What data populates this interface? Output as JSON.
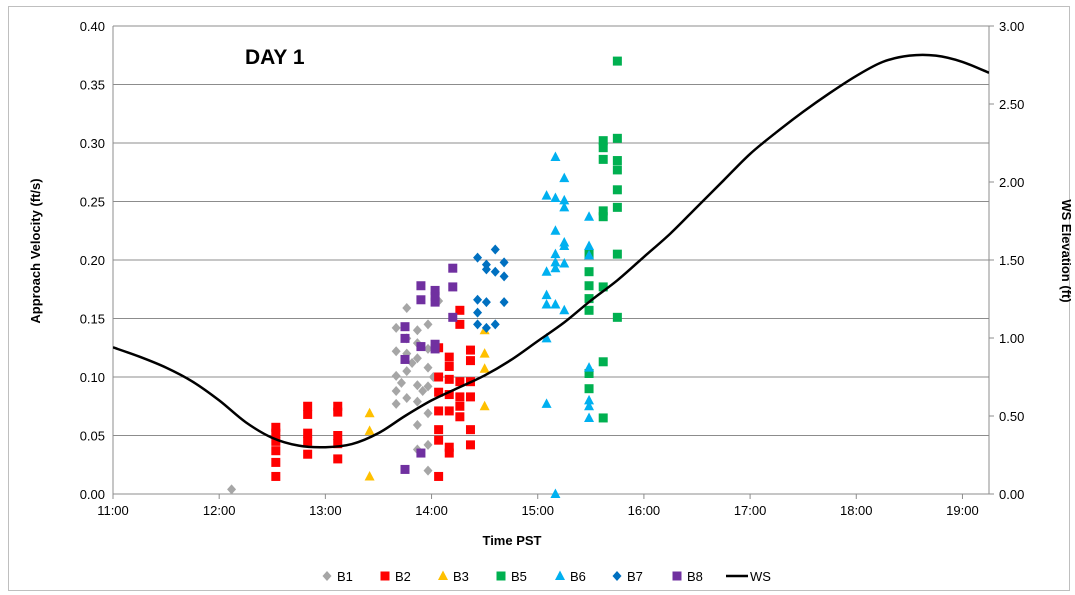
{
  "chart_data": {
    "type": "scatter",
    "title": "",
    "annotation": "DAY 1",
    "xlabel": "Time PST",
    "ylabel": "Approach Velocity (ft/s)",
    "y2label": "WS Elevation (ft)",
    "xlim": [
      "11:00",
      "19:15"
    ],
    "ylim": [
      0,
      0.4
    ],
    "y2lim": [
      0,
      3.0
    ],
    "x_ticks": [
      "11:00",
      "12:00",
      "13:00",
      "14:00",
      "15:00",
      "16:00",
      "17:00",
      "18:00",
      "19:00"
    ],
    "y_ticks": [
      "0.00",
      "0.05",
      "0.10",
      "0.15",
      "0.20",
      "0.25",
      "0.30",
      "0.35",
      "0.40"
    ],
    "y2_ticks": [
      "0.00",
      "0.50",
      "1.00",
      "1.50",
      "2.00",
      "2.50",
      "3.00"
    ],
    "grid": "horizontal",
    "legend_position": "bottom",
    "legend": [
      "B1",
      "B2",
      "B3",
      "B5",
      "B6",
      "B7",
      "B8",
      "WS"
    ],
    "series": [
      {
        "name": "B1",
        "marker": "diamond",
        "color": "#a6a6a6",
        "axis": "left",
        "points": [
          [
            "12:07",
            0.004
          ],
          [
            "13:40",
            0.142
          ],
          [
            "13:40",
            0.122
          ],
          [
            "13:40",
            0.101
          ],
          [
            "13:40",
            0.088
          ],
          [
            "13:40",
            0.077
          ],
          [
            "13:43",
            0.095
          ],
          [
            "13:46",
            0.159
          ],
          [
            "13:46",
            0.133
          ],
          [
            "13:46",
            0.12
          ],
          [
            "13:46",
            0.105
          ],
          [
            "13:46",
            0.082
          ],
          [
            "13:49",
            0.112
          ],
          [
            "13:52",
            0.14
          ],
          [
            "13:52",
            0.129
          ],
          [
            "13:52",
            0.116
          ],
          [
            "13:52",
            0.093
          ],
          [
            "13:52",
            0.079
          ],
          [
            "13:52",
            0.059
          ],
          [
            "13:52",
            0.038
          ],
          [
            "13:55",
            0.088
          ],
          [
            "13:58",
            0.145
          ],
          [
            "13:58",
            0.124
          ],
          [
            "13:58",
            0.108
          ],
          [
            "13:58",
            0.092
          ],
          [
            "13:58",
            0.069
          ],
          [
            "13:58",
            0.042
          ],
          [
            "13:58",
            0.02
          ],
          [
            "14:01",
            0.1
          ],
          [
            "14:04",
            0.165
          ]
        ]
      },
      {
        "name": "B2",
        "marker": "square",
        "color": "#ff0000",
        "axis": "left",
        "points": [
          [
            "12:32",
            0.057
          ],
          [
            "12:32",
            0.052
          ],
          [
            "12:32",
            0.045
          ],
          [
            "12:32",
            0.037
          ],
          [
            "12:32",
            0.027
          ],
          [
            "12:32",
            0.015
          ],
          [
            "12:50",
            0.075
          ],
          [
            "12:50",
            0.068
          ],
          [
            "12:50",
            0.052
          ],
          [
            "12:50",
            0.045
          ],
          [
            "12:50",
            0.034
          ],
          [
            "13:07",
            0.075
          ],
          [
            "13:07",
            0.07
          ],
          [
            "13:07",
            0.05
          ],
          [
            "13:07",
            0.043
          ],
          [
            "13:07",
            0.03
          ],
          [
            "14:04",
            0.125
          ],
          [
            "14:04",
            0.1
          ],
          [
            "14:04",
            0.087
          ],
          [
            "14:04",
            0.071
          ],
          [
            "14:04",
            0.055
          ],
          [
            "14:04",
            0.046
          ],
          [
            "14:04",
            0.015
          ],
          [
            "14:10",
            0.117
          ],
          [
            "14:10",
            0.109
          ],
          [
            "14:10",
            0.098
          ],
          [
            "14:10",
            0.085
          ],
          [
            "14:10",
            0.071
          ],
          [
            "14:10",
            0.04
          ],
          [
            "14:10",
            0.035
          ],
          [
            "14:16",
            0.157
          ],
          [
            "14:16",
            0.145
          ],
          [
            "14:16",
            0.096
          ],
          [
            "14:16",
            0.083
          ],
          [
            "14:16",
            0.075
          ],
          [
            "14:16",
            0.066
          ],
          [
            "14:22",
            0.123
          ],
          [
            "14:22",
            0.114
          ],
          [
            "14:22",
            0.096
          ],
          [
            "14:22",
            0.083
          ],
          [
            "14:22",
            0.055
          ],
          [
            "14:22",
            0.042
          ]
        ]
      },
      {
        "name": "B3",
        "marker": "triangle",
        "color": "#ffc000",
        "axis": "left",
        "points": [
          [
            "13:25",
            0.069
          ],
          [
            "13:25",
            0.054
          ],
          [
            "13:25",
            0.015
          ],
          [
            "14:30",
            0.14
          ],
          [
            "14:30",
            0.12
          ],
          [
            "14:30",
            0.107
          ],
          [
            "14:30",
            0.075
          ]
        ]
      },
      {
        "name": "B5",
        "marker": "square",
        "color": "#00b050",
        "axis": "left",
        "points": [
          [
            "15:29",
            0.205
          ],
          [
            "15:29",
            0.19
          ],
          [
            "15:29",
            0.178
          ],
          [
            "15:29",
            0.167
          ],
          [
            "15:29",
            0.157
          ],
          [
            "15:29",
            0.103
          ],
          [
            "15:29",
            0.09
          ],
          [
            "15:37",
            0.302
          ],
          [
            "15:37",
            0.296
          ],
          [
            "15:37",
            0.286
          ],
          [
            "15:37",
            0.242
          ],
          [
            "15:37",
            0.237
          ],
          [
            "15:37",
            0.177
          ],
          [
            "15:37",
            0.113
          ],
          [
            "15:37",
            0.065
          ],
          [
            "15:45",
            0.37
          ],
          [
            "15:45",
            0.304
          ],
          [
            "15:45",
            0.285
          ],
          [
            "15:45",
            0.277
          ],
          [
            "15:45",
            0.26
          ],
          [
            "15:45",
            0.245
          ],
          [
            "15:45",
            0.205
          ],
          [
            "15:45",
            0.151
          ]
        ]
      },
      {
        "name": "B6",
        "marker": "triangle",
        "color": "#00b0f0",
        "axis": "left",
        "points": [
          [
            "15:05",
            0.255
          ],
          [
            "15:05",
            0.19
          ],
          [
            "15:05",
            0.17
          ],
          [
            "15:05",
            0.162
          ],
          [
            "15:05",
            0.133
          ],
          [
            "15:05",
            0.077
          ],
          [
            "15:10",
            0.288
          ],
          [
            "15:10",
            0.253
          ],
          [
            "15:10",
            0.225
          ],
          [
            "15:10",
            0.205
          ],
          [
            "15:10",
            0.198
          ],
          [
            "15:10",
            0.193
          ],
          [
            "15:10",
            0.162
          ],
          [
            "15:10",
            0.0
          ],
          [
            "15:15",
            0.27
          ],
          [
            "15:15",
            0.251
          ],
          [
            "15:15",
            0.245
          ],
          [
            "15:15",
            0.215
          ],
          [
            "15:15",
            0.212
          ],
          [
            "15:15",
            0.197
          ],
          [
            "15:15",
            0.157
          ],
          [
            "15:29",
            0.237
          ],
          [
            "15:29",
            0.212
          ],
          [
            "15:29",
            0.204
          ],
          [
            "15:29",
            0.108
          ],
          [
            "15:29",
            0.08
          ],
          [
            "15:29",
            0.075
          ],
          [
            "15:29",
            0.065
          ]
        ]
      },
      {
        "name": "B7",
        "marker": "diamond",
        "color": "#0070c0",
        "axis": "left",
        "points": [
          [
            "14:26",
            0.202
          ],
          [
            "14:26",
            0.166
          ],
          [
            "14:26",
            0.155
          ],
          [
            "14:26",
            0.145
          ],
          [
            "14:31",
            0.196
          ],
          [
            "14:31",
            0.192
          ],
          [
            "14:31",
            0.164
          ],
          [
            "14:31",
            0.142
          ],
          [
            "14:36",
            0.209
          ],
          [
            "14:36",
            0.19
          ],
          [
            "14:36",
            0.145
          ],
          [
            "14:41",
            0.198
          ],
          [
            "14:41",
            0.186
          ],
          [
            "14:41",
            0.164
          ]
        ]
      },
      {
        "name": "B8",
        "marker": "square",
        "color": "#7030a0",
        "axis": "left",
        "points": [
          [
            "13:45",
            0.143
          ],
          [
            "13:45",
            0.133
          ],
          [
            "13:45",
            0.115
          ],
          [
            "13:45",
            0.021
          ],
          [
            "13:54",
            0.178
          ],
          [
            "13:54",
            0.166
          ],
          [
            "13:54",
            0.126
          ],
          [
            "13:54",
            0.035
          ],
          [
            "14:02",
            0.174
          ],
          [
            "14:02",
            0.169
          ],
          [
            "14:02",
            0.164
          ],
          [
            "14:02",
            0.128
          ],
          [
            "14:02",
            0.124
          ],
          [
            "14:12",
            0.193
          ],
          [
            "14:12",
            0.177
          ],
          [
            "14:12",
            0.151
          ]
        ]
      },
      {
        "name": "WS",
        "marker": "line",
        "color": "#000000",
        "axis": "right",
        "points": [
          [
            "11:00",
            0.94
          ],
          [
            "11:15",
            0.88
          ],
          [
            "11:30",
            0.81
          ],
          [
            "11:45",
            0.72
          ],
          [
            "12:00",
            0.6
          ],
          [
            "12:15",
            0.46
          ],
          [
            "12:30",
            0.36
          ],
          [
            "12:45",
            0.31
          ],
          [
            "13:00",
            0.3
          ],
          [
            "13:15",
            0.32
          ],
          [
            "13:30",
            0.39
          ],
          [
            "13:45",
            0.5
          ],
          [
            "14:00",
            0.6
          ],
          [
            "14:15",
            0.68
          ],
          [
            "14:30",
            0.76
          ],
          [
            "14:45",
            0.86
          ],
          [
            "15:00",
            0.98
          ],
          [
            "15:15",
            1.1
          ],
          [
            "15:30",
            1.24
          ],
          [
            "15:45",
            1.37
          ],
          [
            "16:00",
            1.52
          ],
          [
            "16:15",
            1.67
          ],
          [
            "16:30",
            1.84
          ],
          [
            "16:45",
            2.01
          ],
          [
            "17:00",
            2.18
          ],
          [
            "17:15",
            2.32
          ],
          [
            "17:30",
            2.45
          ],
          [
            "17:45",
            2.57
          ],
          [
            "18:00",
            2.68
          ],
          [
            "18:15",
            2.77
          ],
          [
            "18:30",
            2.81
          ],
          [
            "18:45",
            2.81
          ],
          [
            "19:00",
            2.77
          ],
          [
            "19:15",
            2.7
          ]
        ]
      }
    ]
  }
}
